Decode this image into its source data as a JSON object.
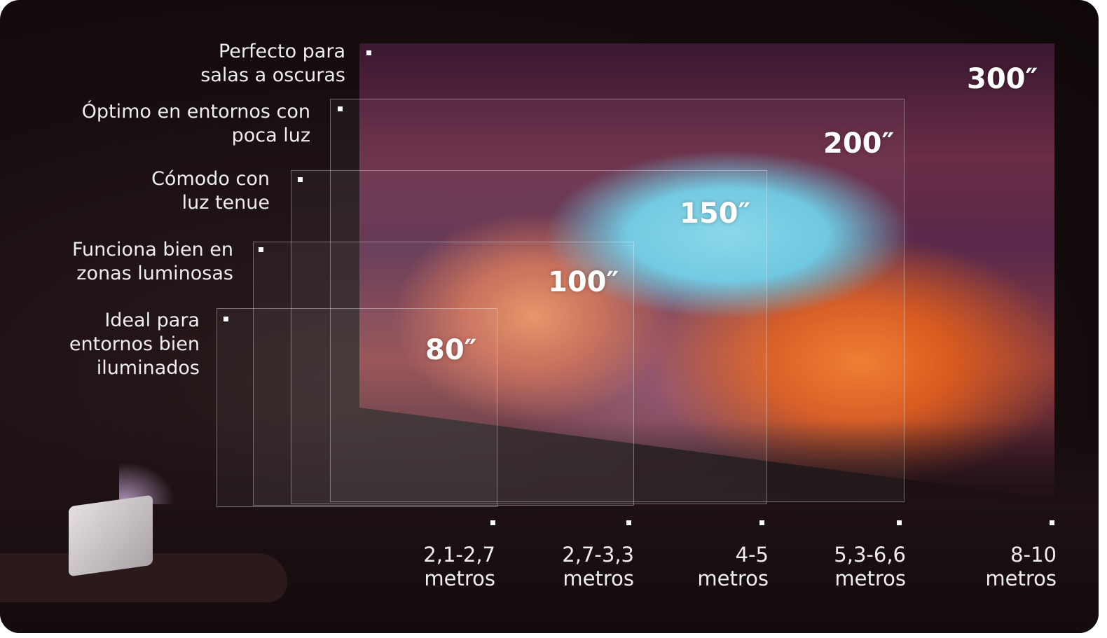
{
  "screens": [
    {
      "size": "300″"
    },
    {
      "size": "200″"
    },
    {
      "size": "150″"
    },
    {
      "size": "100″"
    },
    {
      "size": "80″"
    }
  ],
  "lighting": [
    {
      "line1": "Perfecto para",
      "line2": "salas a oscuras"
    },
    {
      "line1": "Óptimo en entornos con",
      "line2": "poca luz"
    },
    {
      "line1": "Cómodo con",
      "line2": "luz tenue"
    },
    {
      "line1": "Funciona bien en",
      "line2": "zonas luminosas"
    },
    {
      "line1": "Ideal para",
      "line2": "entornos bien",
      "line3": "iluminados"
    }
  ],
  "distances": [
    {
      "range": "2,1-2,7",
      "unit": "metros"
    },
    {
      "range": "2,7-3,3",
      "unit": "metros"
    },
    {
      "range": "4-5",
      "unit": "metros"
    },
    {
      "range": "5,3-6,6",
      "unit": "metros"
    },
    {
      "range": "8-10",
      "unit": "metros"
    }
  ]
}
